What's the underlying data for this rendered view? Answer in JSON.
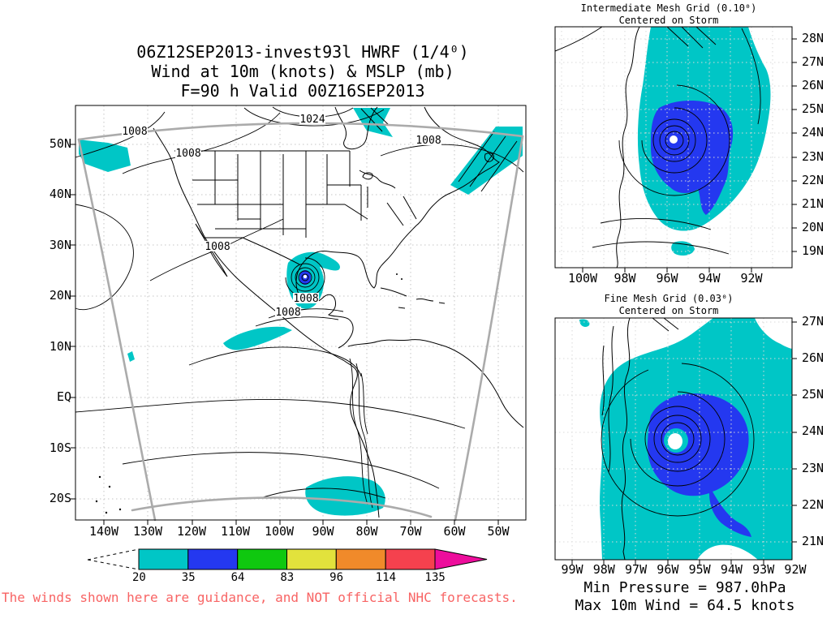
{
  "title": {
    "line1": "06Z12SEP2013-invest93l HWRF (1/4⁰)",
    "line2": "Wind at 10m (knots) & MSLP (mb)",
    "line3": "F=90 h Valid 00Z16SEP2013"
  },
  "main_map": {
    "lat_labels": [
      "50N",
      "40N",
      "30N",
      "20N",
      "10N",
      "EQ",
      "10S",
      "20S"
    ],
    "lon_labels": [
      "140W",
      "130W",
      "120W",
      "110W",
      "100W",
      "90W",
      "80W",
      "70W",
      "60W",
      "50W"
    ],
    "contours": [
      "1008",
      "1024",
      "1008",
      "1008",
      "1008",
      "1008",
      "1008"
    ]
  },
  "panels": {
    "intermediate": {
      "title_line1": "Intermediate Mesh Grid (0.10⁰)",
      "title_line2": "Centered on Storm",
      "lat_labels": [
        "28N",
        "27N",
        "26N",
        "25N",
        "24N",
        "23N",
        "22N",
        "21N",
        "20N",
        "19N"
      ],
      "lon_labels": [
        "100W",
        "98W",
        "96W",
        "94W",
        "92W"
      ]
    },
    "fine": {
      "title_line1": "Fine Mesh Grid (0.03⁰)",
      "title_line2": "Centered on Storm",
      "lat_labels": [
        "27N",
        "26N",
        "25N",
        "24N",
        "23N",
        "22N",
        "21N"
      ],
      "lon_labels": [
        "99W",
        "98W",
        "97W",
        "96W",
        "95W",
        "94W",
        "93W",
        "92W"
      ]
    }
  },
  "colorbar": {
    "tick_labels": [
      "20",
      "35",
      "64",
      "83",
      "96",
      "114",
      "135"
    ],
    "segment_colors": [
      "#00C6C6",
      "#2438F0",
      "#0FC80F",
      "#E2E23C",
      "#F08A2A",
      "#F5414E"
    ],
    "arrow_color": "#ED0D9C"
  },
  "stats": {
    "min_pressure": "Min Pressure = 987.0hPa",
    "max_wind": "Max 10m Wind = 64.5 knots"
  },
  "disclaimer": "The winds shown here are guidance, and NOT official NHC forecasts.",
  "colors": {
    "wind_20kt_shade": "#00C6C6",
    "wind_35kt_shade": "#2438F0",
    "domain_boundary_grey": "#ABABAB",
    "disclaimer_red": "#F86464"
  }
}
